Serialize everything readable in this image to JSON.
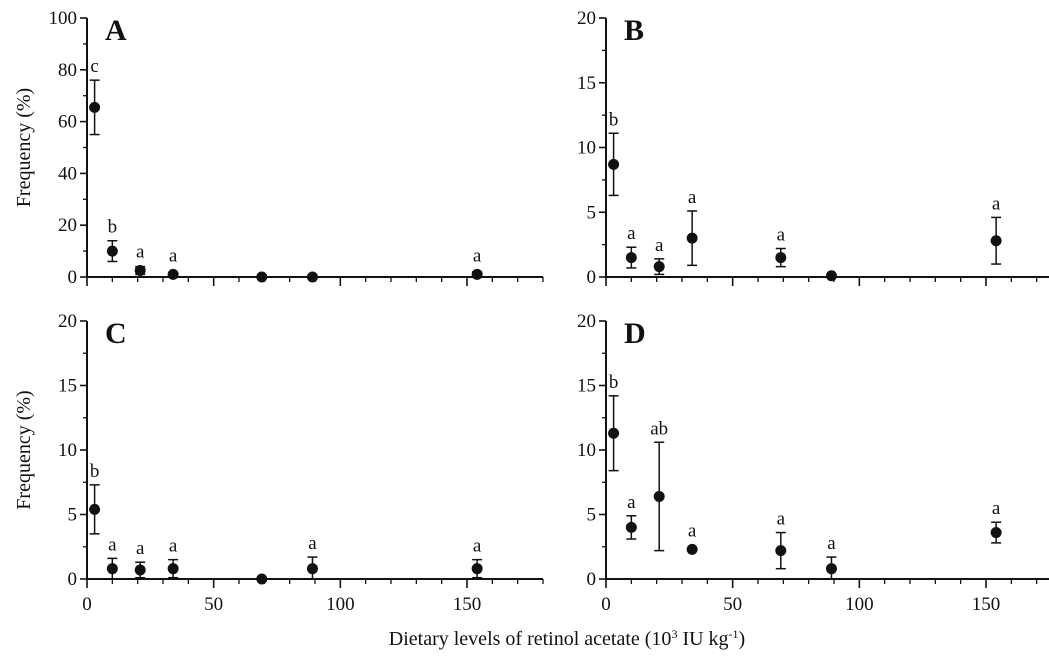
{
  "figure": {
    "xlabel_main": "Dietary levels of retinol acetate (10",
    "xlabel_sup1": "3",
    "xlabel_mid": " IU kg",
    "xlabel_sup2": "-1",
    "xlabel_end": ")"
  },
  "chart_data": [
    {
      "type": "scatter",
      "panel": "A",
      "ylabel": "Frequency (%)",
      "ylim": [
        0,
        100
      ],
      "yticks": [
        0,
        20,
        40,
        60,
        80,
        100
      ],
      "xlim": [
        0,
        180
      ],
      "xticks": [
        0,
        50,
        100,
        150
      ],
      "points": [
        {
          "x": 3,
          "y": 65.5,
          "err": 10.5,
          "label": "c"
        },
        {
          "x": 10,
          "y": 10,
          "err": 4,
          "label": "b"
        },
        {
          "x": 21,
          "y": 2.5,
          "err": 1.5,
          "label": "a"
        },
        {
          "x": 34,
          "y": 1,
          "err": 0,
          "label": "a"
        },
        {
          "x": 69,
          "y": 0,
          "err": 0,
          "label": ""
        },
        {
          "x": 89,
          "y": 0,
          "err": 0,
          "label": ""
        },
        {
          "x": 154,
          "y": 1,
          "err": 1,
          "label": "a"
        }
      ]
    },
    {
      "type": "scatter",
      "panel": "B",
      "ylabel": "",
      "ylim": [
        0,
        20
      ],
      "yticks": [
        0,
        5,
        10,
        15,
        20
      ],
      "xlim": [
        0,
        180
      ],
      "xticks": [
        0,
        50,
        100,
        150
      ],
      "points": [
        {
          "x": 3,
          "y": 8.7,
          "err": 2.4,
          "label": "b"
        },
        {
          "x": 10,
          "y": 1.5,
          "err": 0.8,
          "label": "a"
        },
        {
          "x": 21,
          "y": 0.8,
          "err": 0.6,
          "label": "a"
        },
        {
          "x": 34,
          "y": 3.0,
          "err": 2.1,
          "label": "a"
        },
        {
          "x": 69,
          "y": 1.5,
          "err": 0.7,
          "label": "a"
        },
        {
          "x": 89,
          "y": 0.1,
          "err": 0,
          "label": ""
        },
        {
          "x": 154,
          "y": 2.8,
          "err": 1.8,
          "label": "a"
        }
      ]
    },
    {
      "type": "scatter",
      "panel": "C",
      "ylabel": "Frequency (%)",
      "ylim": [
        0,
        20
      ],
      "yticks": [
        0,
        5,
        10,
        15,
        20
      ],
      "xlim": [
        0,
        180
      ],
      "xticks": [
        0,
        50,
        100,
        150
      ],
      "points": [
        {
          "x": 3,
          "y": 5.4,
          "err": 1.9,
          "label": "b"
        },
        {
          "x": 10,
          "y": 0.8,
          "err": 0.8,
          "label": "a"
        },
        {
          "x": 21,
          "y": 0.7,
          "err": 0.6,
          "label": "a"
        },
        {
          "x": 34,
          "y": 0.8,
          "err": 0.7,
          "label": "a"
        },
        {
          "x": 69,
          "y": 0,
          "err": 0,
          "label": ""
        },
        {
          "x": 89,
          "y": 0.8,
          "err": 0.9,
          "label": "a"
        },
        {
          "x": 154,
          "y": 0.8,
          "err": 0.7,
          "label": "a"
        }
      ]
    },
    {
      "type": "scatter",
      "panel": "D",
      "ylabel": "",
      "ylim": [
        0,
        20
      ],
      "yticks": [
        0,
        5,
        10,
        15,
        20
      ],
      "xlim": [
        0,
        180
      ],
      "xticks": [
        0,
        50,
        100,
        150
      ],
      "points": [
        {
          "x": 3,
          "y": 11.3,
          "err": 2.9,
          "label": "b"
        },
        {
          "x": 10,
          "y": 4.0,
          "err": 0.9,
          "label": "a"
        },
        {
          "x": 21,
          "y": 6.4,
          "err": 4.2,
          "label": "ab"
        },
        {
          "x": 34,
          "y": 2.3,
          "err": 0,
          "label": "a"
        },
        {
          "x": 69,
          "y": 2.2,
          "err": 1.4,
          "label": "a"
        },
        {
          "x": 89,
          "y": 0.8,
          "err": 0.9,
          "label": "a"
        },
        {
          "x": 154,
          "y": 3.6,
          "err": 0.8,
          "label": "a"
        }
      ]
    }
  ]
}
